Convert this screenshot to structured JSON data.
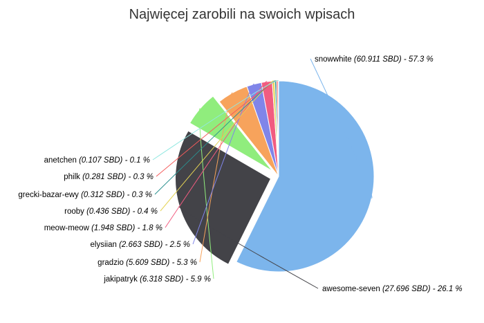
{
  "chart_data": {
    "type": "pie",
    "title": "Najwięcej zarobili na swoich wpisach",
    "unit": "SBD",
    "slices": [
      {
        "name": "snowwhite",
        "value": 60.911,
        "percent": "57.3",
        "color": "#7cb5ec",
        "exploded": false
      },
      {
        "name": "awesome-seven",
        "value": 27.696,
        "percent": "26.1",
        "color": "#434348",
        "exploded": true
      },
      {
        "name": "jakipatryk",
        "value": 6.318,
        "percent": "5.9",
        "color": "#90ed7d",
        "exploded": true
      },
      {
        "name": "gradzio",
        "value": 5.609,
        "percent": "5.3",
        "color": "#f7a35c",
        "exploded": false
      },
      {
        "name": "elysiian",
        "value": 2.663,
        "percent": "2.5",
        "color": "#8085e9",
        "exploded": false
      },
      {
        "name": "meow-meow",
        "value": 1.948,
        "percent": "1.8",
        "color": "#f15c80",
        "exploded": false
      },
      {
        "name": "rooby",
        "value": 0.436,
        "percent": "0.4",
        "color": "#e4d354",
        "exploded": false
      },
      {
        "name": "grecki-bazar-ewy",
        "value": 0.312,
        "percent": "0.3",
        "color": "#2b908f",
        "exploded": false
      },
      {
        "name": "philk",
        "value": 0.281,
        "percent": "0.3",
        "color": "#f45b5b",
        "exploded": false
      },
      {
        "name": "anetchen",
        "value": 0.107,
        "percent": "0.1",
        "color": "#91e8e1",
        "exploded": false
      }
    ]
  }
}
